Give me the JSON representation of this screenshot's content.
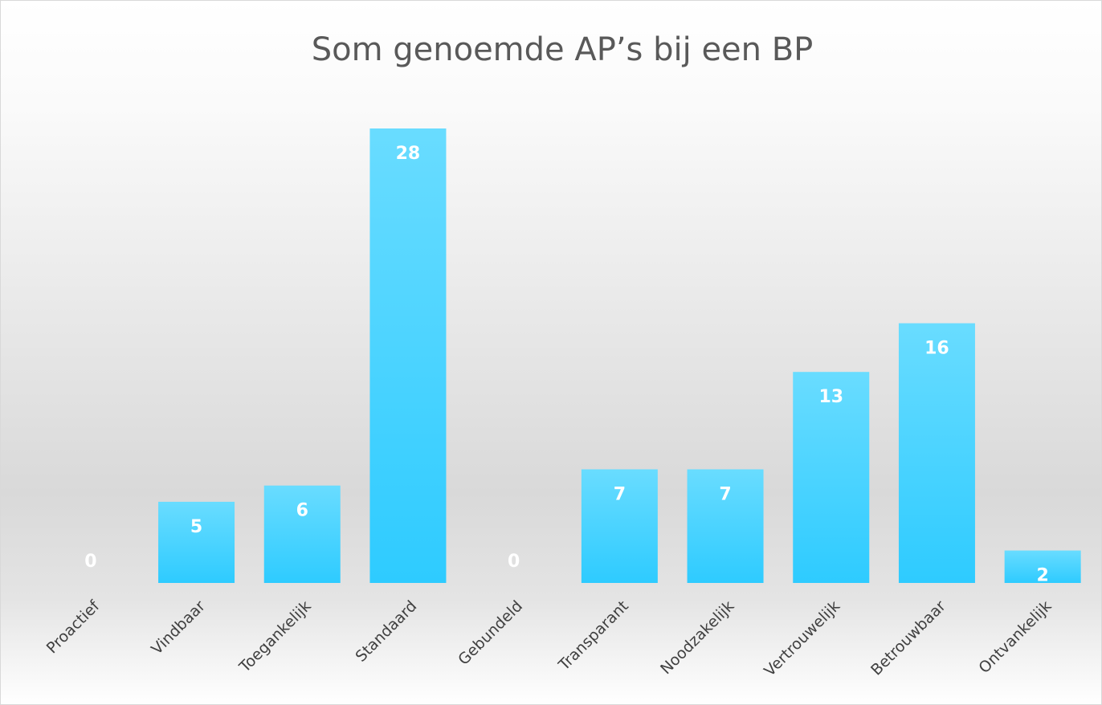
{
  "chart_data": {
    "type": "bar",
    "title": "Som genoemde AP’s bij een BP",
    "categories": [
      "Proactief",
      "Vindbaar",
      "Toegankelijk",
      "Standaard",
      "Gebundeld",
      "Transparant",
      "Noodzakelijk",
      "Vertrouwelijk",
      "Betrouwbaar",
      "Ontvankelijk"
    ],
    "values": [
      0,
      5,
      6,
      28,
      0,
      7,
      7,
      13,
      16,
      2
    ],
    "color": "#3fd0ff"
  }
}
